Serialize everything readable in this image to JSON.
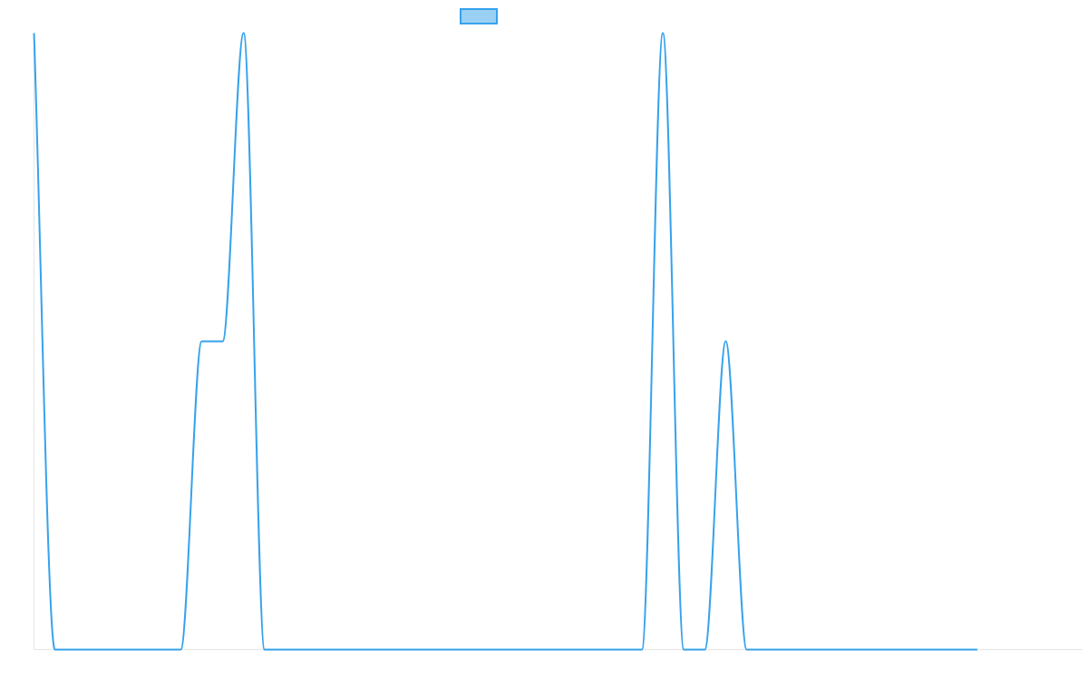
{
  "chart_data": {
    "type": "line",
    "title": "",
    "xlabel": "",
    "ylabel": "",
    "grid": false,
    "legend": {
      "placement": "top-center",
      "entries": [
        {
          "label": "",
          "swatch_fill": "#9BD0F5",
          "swatch_stroke": "#36A2EB"
        }
      ]
    },
    "x": [
      0,
      1,
      7,
      8,
      9,
      10,
      11,
      29,
      30,
      31,
      32,
      33,
      34,
      45
    ],
    "ylim": [
      0,
      2
    ],
    "series": [
      {
        "color": "#36A2EB",
        "values": [
          2,
          0,
          0,
          1,
          1,
          2,
          0,
          0,
          2,
          0,
          0,
          1,
          0,
          0
        ]
      }
    ],
    "xlim": [
      0,
      50
    ]
  },
  "colors": {
    "line": "#36A2EB",
    "legend_fill": "#9BD0F5",
    "axis": "#e6e6e6"
  }
}
